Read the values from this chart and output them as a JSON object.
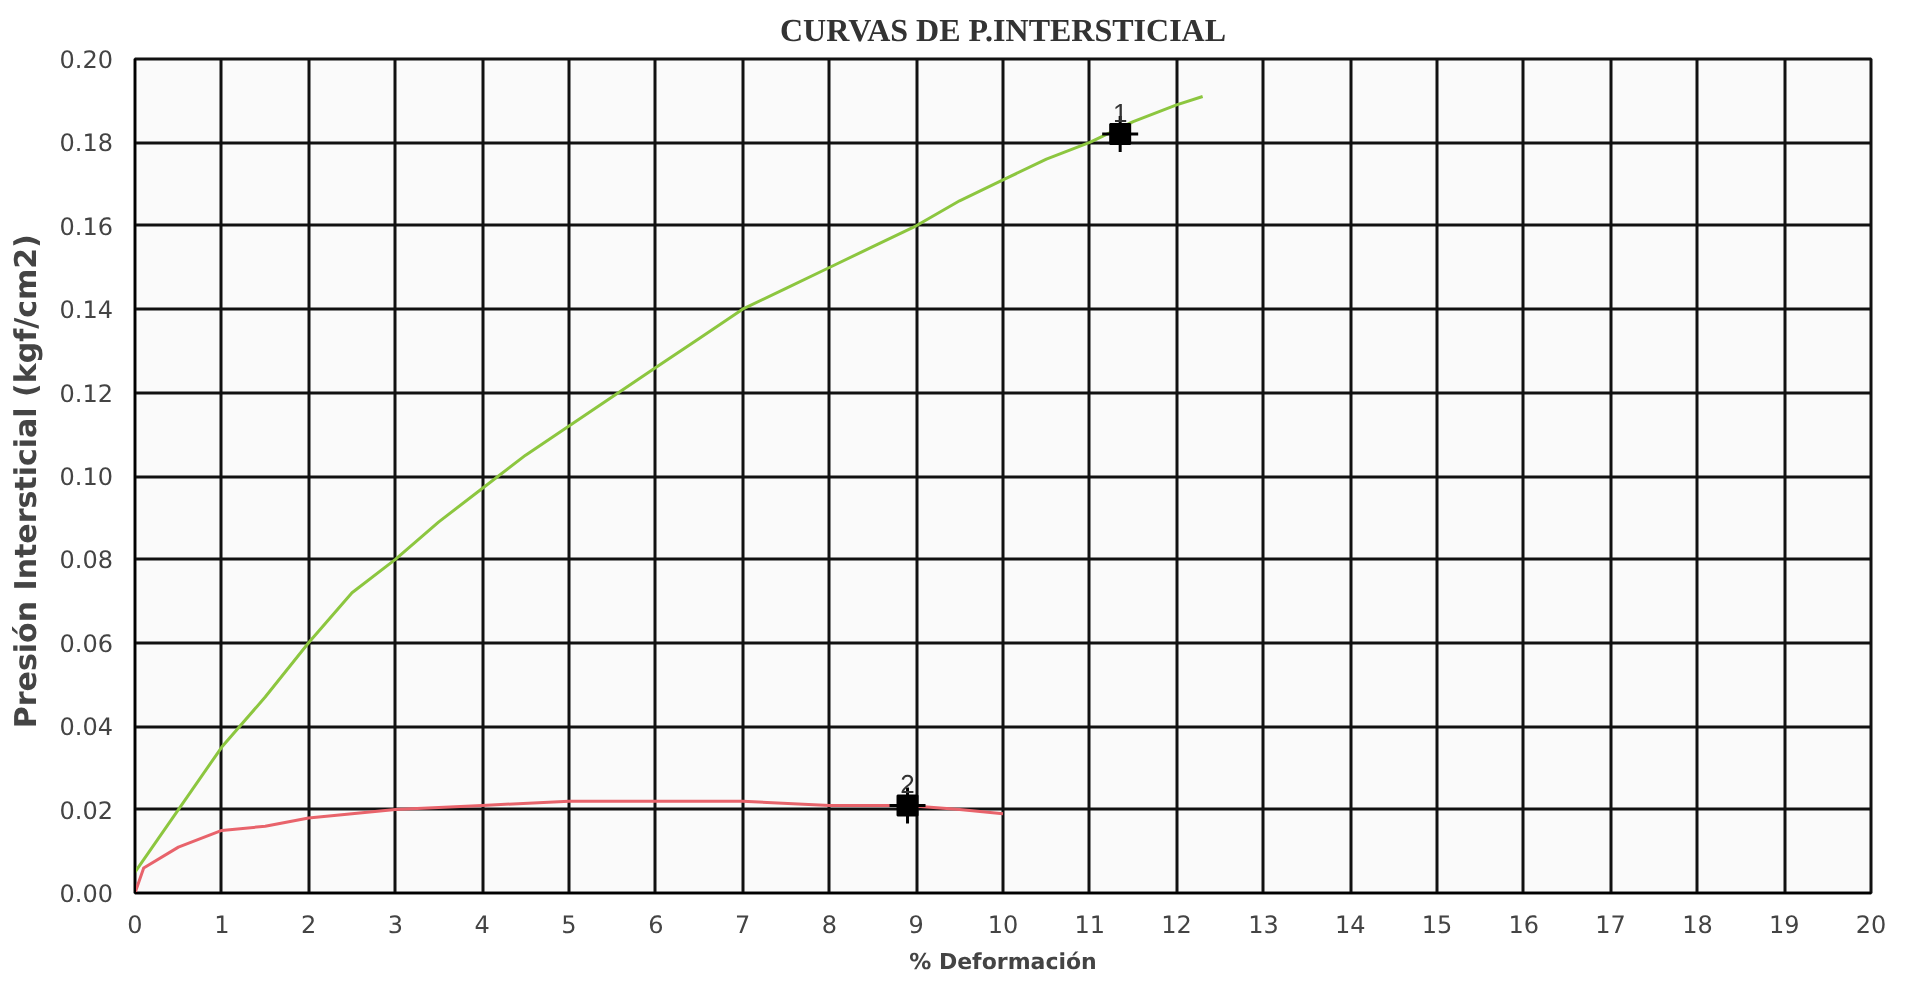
{
  "chart_data": {
    "type": "line",
    "title": "CURVAS DE P.INTERSTICIAL",
    "xlabel": "% Deformación",
    "ylabel": "Presión Intersticial  (kgf/cm2)",
    "xlim": [
      0,
      20
    ],
    "xticks": [
      0,
      1,
      2,
      3,
      4,
      5,
      6,
      7,
      8,
      9,
      10,
      11,
      12,
      13,
      14,
      15,
      16,
      17,
      18,
      19,
      20
    ],
    "ylim": [
      0,
      0.2
    ],
    "yticks": [
      {
        "value": 0,
        "label": "0.00"
      },
      {
        "value": 0.02,
        "label": "0.02"
      },
      {
        "value": 0.04,
        "label": "0.04"
      },
      {
        "value": 0.06,
        "label": "0.06"
      },
      {
        "value": 0.08,
        "label": "0.08"
      },
      {
        "value": 0.1,
        "label": "0.10"
      },
      {
        "value": 0.12,
        "label": "0.12"
      },
      {
        "value": 0.14,
        "label": "0.14"
      },
      {
        "value": 0.16,
        "label": "0.16"
      },
      {
        "value": 0.18,
        "label": "0.18"
      },
      {
        "value": 0.2,
        "label": "0.20"
      }
    ],
    "grid": true,
    "series": [
      {
        "color": "#8cc63f",
        "x": [
          0,
          0.5,
          1,
          1.5,
          2,
          2.5,
          3,
          3.5,
          4,
          4.5,
          5,
          5.5,
          6,
          6.5,
          7,
          7.5,
          8,
          8.5,
          9,
          9.5,
          10,
          10.5,
          11,
          11.5,
          12,
          12.3
        ],
        "values": [
          0.005,
          0.02,
          0.035,
          0.047,
          0.06,
          0.072,
          0.08,
          0.089,
          0.097,
          0.105,
          0.112,
          0.119,
          0.126,
          0.133,
          0.14,
          0.145,
          0.15,
          0.155,
          0.16,
          0.166,
          0.171,
          0.176,
          0.18,
          0.185,
          0.189,
          0.191
        ]
      },
      {
        "color": "#e8636b",
        "x": [
          0,
          0.1,
          0.5,
          1,
          1.5,
          2,
          2.5,
          3,
          4,
          5,
          6,
          7,
          8,
          8.9,
          9.5,
          10
        ],
        "values": [
          0,
          0.006,
          0.011,
          0.015,
          0.016,
          0.018,
          0.019,
          0.02,
          0.021,
          0.022,
          0.022,
          0.022,
          0.021,
          0.021,
          0.02,
          0.019
        ]
      },
      {
        "type": "scatter",
        "marker": "square",
        "color": "#000000",
        "x": [
          11.35
        ],
        "values": [
          0.182
        ]
      },
      {
        "type": "scatter",
        "marker": "square",
        "color": "#000000",
        "x": [
          8.9
        ],
        "values": [
          0.021
        ]
      }
    ],
    "annotations": [
      {
        "text": "1",
        "x": 11.35,
        "y": 0.182
      },
      {
        "text": "2",
        "x": 8.9,
        "y": 0.021
      }
    ]
  }
}
